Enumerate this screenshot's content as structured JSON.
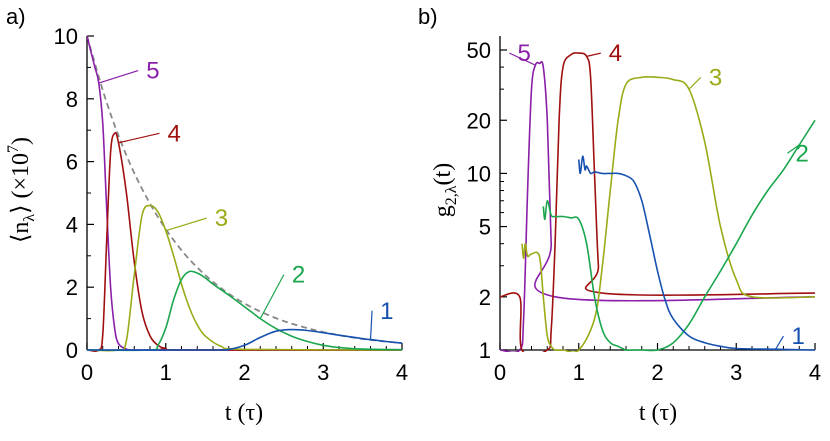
{
  "chart_data": [
    {
      "type": "line",
      "panel_label": "a)",
      "xlabel": "t (τ)",
      "ylabel": "⟨n_λ⟩ (×10^7)",
      "xlim": [
        0,
        4
      ],
      "ylim": [
        0,
        10
      ],
      "x_ticks": [
        "0",
        "1",
        "2",
        "3",
        "4"
      ],
      "y_ticks": [
        "0",
        "2",
        "4",
        "6",
        "8",
        "10"
      ],
      "y_scale": "linear",
      "series": [
        {
          "name": "5",
          "color": "#8b1fa9",
          "x": [
            0,
            0.05,
            0.1,
            0.15,
            0.2,
            0.25,
            0.3,
            0.35,
            0.4,
            0.5,
            0.6,
            1.0,
            4.0
          ],
          "y": [
            10,
            9.5,
            9.0,
            8.5,
            7.2,
            4.5,
            2.0,
            0.7,
            0.2,
            0.03,
            0,
            0,
            0
          ],
          "label_pos": [
            0.65,
            8.9
          ]
        },
        {
          "name": "4",
          "color": "#a01010",
          "x": [
            0,
            0.15,
            0.2,
            0.25,
            0.3,
            0.35,
            0.4,
            0.5,
            0.6,
            0.7,
            0.8,
            0.9,
            1.0,
            1.2,
            4.0
          ],
          "y": [
            0,
            0,
            0.5,
            3.5,
            6.3,
            6.9,
            6.6,
            5.0,
            2.8,
            1.2,
            0.45,
            0.15,
            0.05,
            0,
            0
          ],
          "label_pos": [
            0.92,
            6.9
          ]
        },
        {
          "name": "3",
          "color": "#9aab17",
          "x": [
            0,
            0.4,
            0.5,
            0.6,
            0.7,
            0.8,
            0.9,
            1.0,
            1.1,
            1.2,
            1.3,
            1.4,
            1.5,
            1.7,
            2.0,
            4.0
          ],
          "y": [
            0,
            0,
            0.3,
            2.4,
            4.3,
            4.6,
            4.4,
            3.8,
            3.0,
            2.1,
            1.35,
            0.8,
            0.45,
            0.12,
            0.02,
            0
          ],
          "label_pos": [
            1.52,
            4.2
          ]
        },
        {
          "name": "2",
          "color": "#1aa64c",
          "x": [
            0,
            0.8,
            0.9,
            1.0,
            1.1,
            1.2,
            1.3,
            1.4,
            1.5,
            1.6,
            1.8,
            2.0,
            2.2,
            2.4,
            2.6,
            2.8,
            3.0,
            3.2,
            3.5,
            4.0
          ],
          "y": [
            0,
            0,
            0.15,
            0.7,
            1.6,
            2.25,
            2.5,
            2.45,
            2.3,
            2.1,
            1.75,
            1.38,
            1.0,
            0.68,
            0.44,
            0.27,
            0.15,
            0.08,
            0.03,
            0.01
          ],
          "label_pos": [
            2.5,
            2.4
          ]
        },
        {
          "name": "1",
          "color": "#1651b0",
          "x": [
            0,
            1.6,
            1.8,
            2.0,
            2.2,
            2.4,
            2.6,
            2.8,
            3.0,
            3.2,
            3.4,
            3.6,
            3.8,
            4.0
          ],
          "y": [
            0,
            0,
            0.02,
            0.15,
            0.4,
            0.6,
            0.65,
            0.62,
            0.55,
            0.47,
            0.4,
            0.33,
            0.27,
            0.22
          ],
          "label_pos": [
            3.62,
            1.25
          ]
        }
      ],
      "envelope": {
        "style": "dashed",
        "color": "#888888",
        "x": [
          0,
          0.25,
          0.5,
          0.75,
          1.0,
          1.25,
          1.5,
          1.75,
          2.0,
          2.25,
          2.5,
          2.75,
          3.0,
          3.25,
          3.5,
          3.75,
          4.0
        ],
        "y": [
          10,
          7.88,
          6.2,
          4.89,
          3.85,
          3.03,
          2.39,
          1.88,
          1.48,
          1.17,
          0.92,
          0.73,
          0.57,
          0.45,
          0.35,
          0.28,
          0.22
        ]
      }
    },
    {
      "type": "line",
      "panel_label": "b)",
      "xlabel": "t (τ)",
      "ylabel": "g_{2,λ}(t)",
      "xlim": [
        0,
        4
      ],
      "ylim": [
        1,
        60
      ],
      "y_scale": "log",
      "x_ticks": [
        "0",
        "1",
        "2",
        "3",
        "4"
      ],
      "y_ticks": [
        "1",
        "2",
        "5",
        "10",
        "20",
        "50"
      ],
      "y_tick_values": [
        1,
        2,
        5,
        10,
        20,
        50
      ],
      "series": [
        {
          "name": "5",
          "color": "#8b1fa9",
          "x": [
            0,
            0.25,
            0.3,
            0.35,
            0.4,
            0.45,
            0.5,
            0.55,
            0.6,
            0.65,
            0.7,
            4.0
          ],
          "y": [
            1,
            1,
            1.5,
            8,
            30,
            41,
            42,
            40,
            20,
            4,
            2,
            2
          ],
          "label_pos": [
            0.12,
            48
          ]
        },
        {
          "name": "4",
          "color": "#a01010",
          "x": [
            0,
            0.25,
            0.28,
            0.6,
            0.65,
            0.7,
            0.75,
            0.8,
            0.9,
            1.0,
            1.1,
            1.15,
            1.2,
            1.25,
            1.3,
            4.0
          ],
          "y": [
            2,
            2,
            1,
            1,
            1.3,
            4,
            20,
            40,
            47,
            48,
            46,
            35,
            10,
            3,
            2.1,
            2.1
          ],
          "label_pos": [
            1.28,
            48
          ]
        },
        {
          "name": "3",
          "color": "#9aab17",
          "x": [
            0.28,
            0.3,
            0.32,
            0.35,
            0.4,
            0.5,
            0.55,
            0.6,
            0.65,
            0.7,
            0.8,
            1.0,
            1.2,
            1.3,
            1.4,
            1.5,
            1.6,
            1.8,
            2.0,
            2.2,
            2.4,
            2.6,
            2.8,
            3.0,
            3.2,
            4.0
          ],
          "y": [
            4,
            3.3,
            4,
            3.4,
            3.5,
            3.4,
            2,
            1.2,
            1.05,
            1,
            1,
            1,
            1.5,
            3,
            8,
            20,
            32,
            35,
            35,
            34,
            30,
            15,
            5,
            2.5,
            2,
            2
          ],
          "label_pos": [
            2.55,
            35
          ]
        },
        {
          "name": "2",
          "color": "#1aa64c",
          "x": [
            0.55,
            0.57,
            0.6,
            0.65,
            0.7,
            0.8,
            0.9,
            1.0,
            1.1,
            1.2,
            1.3,
            1.4,
            1.5,
            1.6,
            1.7,
            1.8,
            2.0,
            2.2,
            2.4,
            2.6,
            2.8,
            3.0,
            3.2,
            3.4,
            3.6,
            3.8,
            4.0
          ],
          "y": [
            6.5,
            5.5,
            7,
            5.8,
            5.7,
            5.7,
            5.6,
            5.5,
            4,
            2,
            1.3,
            1.1,
            1.05,
            1,
            1,
            1,
            1,
            1.1,
            1.4,
            2,
            2.8,
            4,
            5.8,
            8,
            10.5,
            14.5,
            20
          ],
          "label_pos": [
            3.65,
            13
          ]
        },
        {
          "name": "1",
          "color": "#1651b0",
          "x": [
            1.0,
            1.02,
            1.05,
            1.08,
            1.1,
            1.15,
            1.2,
            1.3,
            1.4,
            1.5,
            1.6,
            1.7,
            1.8,
            1.9,
            2.0,
            2.1,
            2.2,
            2.4,
            2.6,
            2.8,
            3.0,
            3.5,
            4.0
          ],
          "y": [
            12,
            10,
            12.5,
            10.5,
            11,
            10,
            10.2,
            10,
            10,
            10,
            9.7,
            9,
            7,
            4.5,
            2.8,
            1.9,
            1.5,
            1.2,
            1.1,
            1.05,
            1.02,
            1.01,
            1
          ],
          "label_pos": [
            3.6,
            1.2
          ]
        }
      ]
    }
  ]
}
